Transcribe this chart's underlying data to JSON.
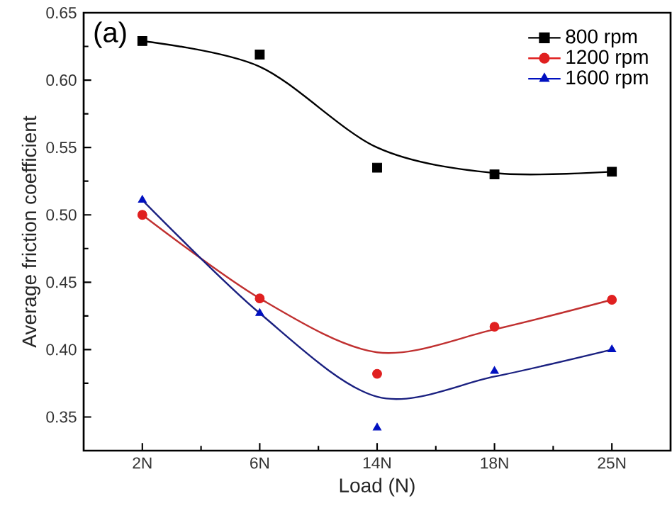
{
  "chart_data": {
    "type": "line",
    "xlabel": "Load (N)",
    "ylabel": "Average friction coefficient",
    "annotations": [
      "(a)"
    ],
    "categories": [
      "2N",
      "6N",
      "14N",
      "18N",
      "25N"
    ],
    "ylim": [
      0.325,
      0.65
    ],
    "yticks": [
      0.35,
      {
        "value": 0.4,
        "label": "0.40"
      },
      0.45,
      {
        "value": 0.5,
        "label": "0.50"
      },
      0.55,
      {
        "value": 0.6,
        "label": "0.60"
      },
      0.65
    ],
    "grid": false,
    "legend": "top right",
    "series": [
      {
        "name": "800 rpm",
        "type": "scatter",
        "marker": "square",
        "color": "#000000",
        "values": [
          0.629,
          0.619,
          0.535,
          0.53,
          0.532
        ]
      },
      {
        "name": "1200 rpm",
        "type": "scatter",
        "marker": "circle",
        "color": "#e02020",
        "values": [
          0.5,
          0.438,
          0.382,
          0.417,
          0.437
        ]
      },
      {
        "name": "1600 rpm",
        "type": "scatter",
        "marker": "triangle",
        "color": "#0010c0",
        "values": [
          0.511,
          0.427,
          0.342,
          0.384,
          0.4
        ]
      },
      {
        "color": "#000000",
        "values": [
          0.629,
          0.61,
          0.55,
          0.531,
          0.532
        ]
      },
      {
        "color": "#c03030",
        "values": [
          0.5,
          0.438,
          0.398,
          0.415,
          0.437
        ]
      },
      {
        "color": "#1a2080",
        "values": [
          0.511,
          0.427,
          0.365,
          0.38,
          0.4
        ]
      }
    ]
  }
}
